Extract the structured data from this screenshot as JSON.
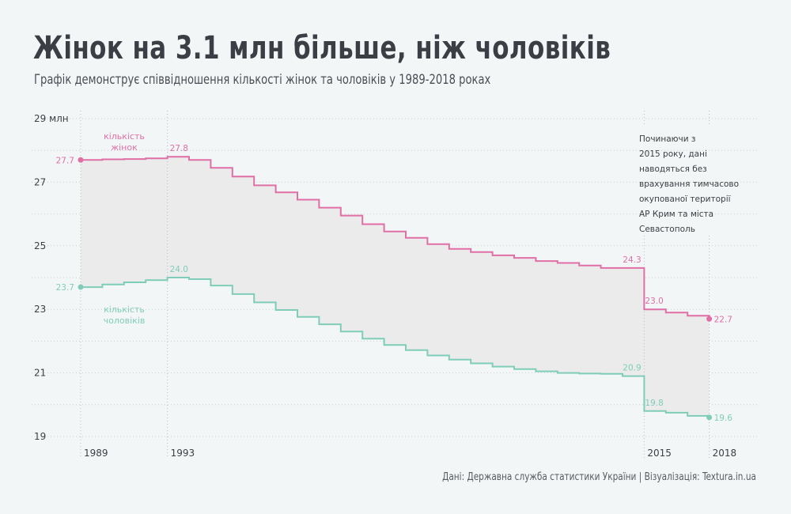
{
  "title": "Жінок на 3.1 млн більше, ніж чоловіків",
  "subtitle": "Графік демонструє співвідношення кількості жінок та чоловіків у 1989-2018 роках",
  "source": "Дані: Державна служба статистики України | Візуалізація: Textura.in.ua",
  "colors": {
    "women": "#e06fa6",
    "men": "#7fcdb8",
    "band": "#ebebeb",
    "text": "#3a3f44"
  },
  "chart_data": {
    "type": "line",
    "step": true,
    "x": [
      1989,
      1990,
      1991,
      1992,
      1993,
      1994,
      1995,
      1996,
      1997,
      1998,
      1999,
      2000,
      2001,
      2002,
      2003,
      2004,
      2005,
      2006,
      2007,
      2008,
      2009,
      2010,
      2011,
      2012,
      2013,
      2014,
      2015,
      2016,
      2017,
      2018
    ],
    "series": [
      {
        "name": "кількість жінок",
        "key": "women",
        "values": [
          27.7,
          27.72,
          27.73,
          27.75,
          27.8,
          27.7,
          27.45,
          27.18,
          26.9,
          26.68,
          26.45,
          26.2,
          25.95,
          25.68,
          25.45,
          25.25,
          25.05,
          24.9,
          24.8,
          24.7,
          24.62,
          24.52,
          24.46,
          24.38,
          24.3,
          24.3,
          23.0,
          22.9,
          22.8,
          22.7
        ]
      },
      {
        "name": "кількість чоловіків",
        "key": "men",
        "values": [
          23.7,
          23.78,
          23.85,
          23.92,
          24.0,
          23.95,
          23.75,
          23.48,
          23.22,
          22.98,
          22.76,
          22.53,
          22.3,
          22.08,
          21.88,
          21.72,
          21.55,
          21.42,
          21.3,
          21.2,
          21.12,
          21.05,
          21.0,
          20.98,
          20.97,
          20.9,
          19.8,
          19.75,
          19.65,
          19.6
        ]
      }
    ],
    "point_labels": [
      {
        "series": "women",
        "year": 1989,
        "text": "27.7",
        "dot": true
      },
      {
        "series": "women",
        "year": 1993,
        "text": "27.8"
      },
      {
        "series": "women",
        "year": 2014,
        "text": "24.3"
      },
      {
        "series": "women",
        "year": 2015,
        "text": "23.0"
      },
      {
        "series": "women",
        "year": 2018,
        "text": "22.7",
        "dot": true
      },
      {
        "series": "men",
        "year": 1989,
        "text": "23.7",
        "dot": true
      },
      {
        "series": "men",
        "year": 1993,
        "text": "24.0"
      },
      {
        "series": "men",
        "year": 2014,
        "text": "20.9"
      },
      {
        "series": "men",
        "year": 2015,
        "text": "19.8"
      },
      {
        "series": "men",
        "year": 2018,
        "text": "19.6",
        "dot": true
      }
    ],
    "y_ticks": [
      {
        "value": 29,
        "label": "29 млн"
      },
      {
        "value": 27,
        "label": "27"
      },
      {
        "value": 25,
        "label": "25"
      },
      {
        "value": 23,
        "label": "23"
      },
      {
        "value": 21,
        "label": "21"
      },
      {
        "value": 19,
        "label": "19"
      }
    ],
    "x_ticks": [
      1989,
      1993,
      2015,
      2018
    ],
    "ylim": [
      19,
      29
    ],
    "series_labels": {
      "women": [
        "кількість",
        "жінок"
      ],
      "men": [
        "кількість",
        "чоловіків"
      ]
    },
    "annotation": {
      "lines": [
        "Починаючи з",
        "2015 року, дані",
        "наводяться без",
        "врахування тимчасово",
        "окупованої території",
        "АР Крим та міста",
        "Севастополь"
      ]
    },
    "grid": true
  }
}
